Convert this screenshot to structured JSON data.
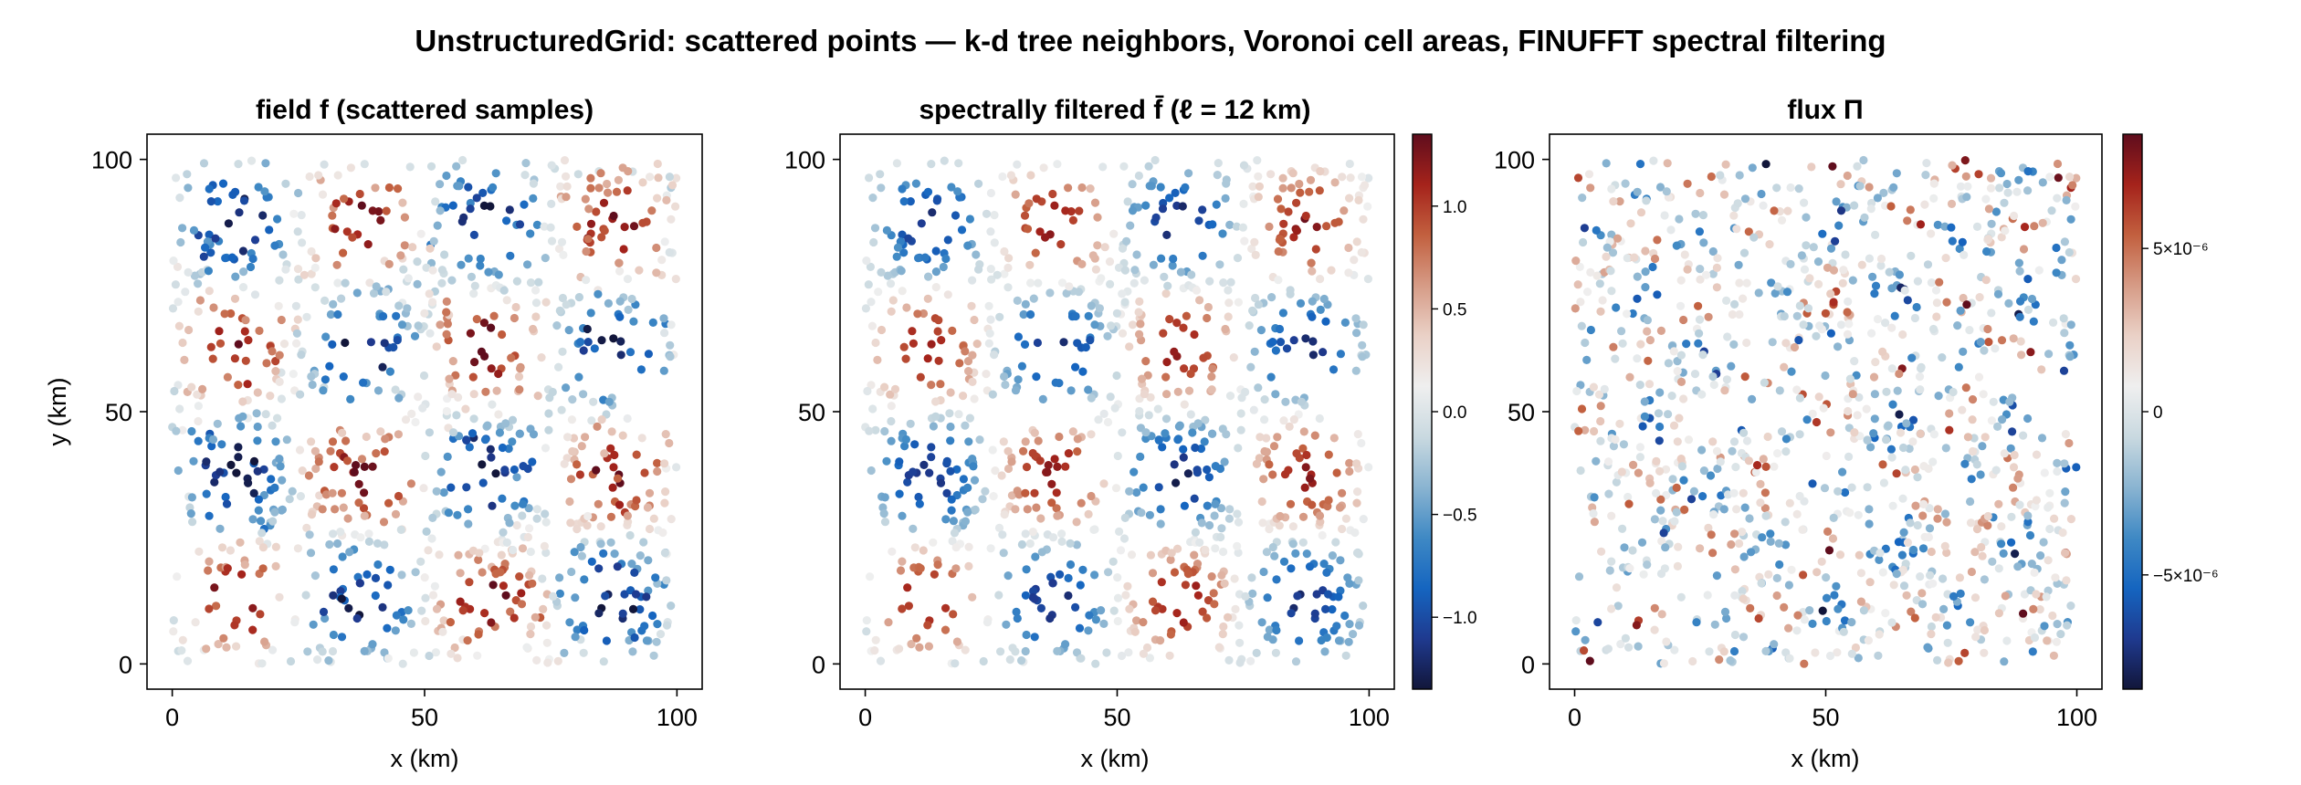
{
  "figure": {
    "title": "UnstructuredGrid: scattered points — k-d tree neighbors, Voronoi cell areas, FINUFFT spectral filtering"
  },
  "colormap": {
    "name": "balance",
    "stops": [
      "#12163a",
      "#1f3a8f",
      "#1565c0",
      "#3f89c4",
      "#8ab4d1",
      "#c9d9e0",
      "#efefef",
      "#ead1c7",
      "#d69b86",
      "#c2603f",
      "#a5231b",
      "#5f0d1d"
    ]
  },
  "chart_data": [
    {
      "type": "scatter",
      "title": "field f (scattered samples)",
      "xlabel": "x (km)",
      "ylabel": "y (km)",
      "xlim": [
        -5,
        105
      ],
      "ylim": [
        -5,
        105
      ],
      "xticks": [
        "0",
        "50",
        "100"
      ],
      "yticks": [
        "0",
        "50",
        "100"
      ],
      "field": "f = sin(2πx/50)·sin(2πy/50) + noise",
      "n_points": 1100,
      "value_range": [
        -1.35,
        1.35
      ],
      "colorbar": null
    },
    {
      "type": "scatter",
      "title": "spectrally filtered f̄  (ℓ = 12 km)",
      "xlabel": "x (km)",
      "ylabel": "",
      "xlim": [
        -5,
        105
      ],
      "ylim": [
        -5,
        105
      ],
      "xticks": [
        "0",
        "50",
        "100"
      ],
      "yticks": [
        "0",
        "50",
        "100"
      ],
      "n_points": 1100,
      "value_range": [
        -1.35,
        1.35
      ],
      "colorbar": {
        "range": [
          -1.35,
          1.35
        ],
        "ticks": [
          -1.0,
          -0.5,
          0.0,
          0.5,
          1.0
        ],
        "tick_labels": [
          "−1.0",
          "−0.5",
          "0.0",
          "0.5",
          "1.0"
        ]
      }
    },
    {
      "type": "scatter",
      "title": "flux Π",
      "xlabel": "x (km)",
      "ylabel": "",
      "xlim": [
        -5,
        105
      ],
      "ylim": [
        -5,
        105
      ],
      "xticks": [
        "0",
        "50",
        "100"
      ],
      "yticks": [
        "0",
        "50",
        "100"
      ],
      "n_points": 1100,
      "value_range": [
        -8.5e-06,
        8.5e-06
      ],
      "colorbar": {
        "range": [
          -8.5e-06,
          8.5e-06
        ],
        "ticks": [
          -5e-06,
          0,
          5e-06
        ],
        "tick_labels": [
          "−5×10⁻⁶",
          "0",
          "5×10⁻⁶"
        ]
      }
    }
  ]
}
